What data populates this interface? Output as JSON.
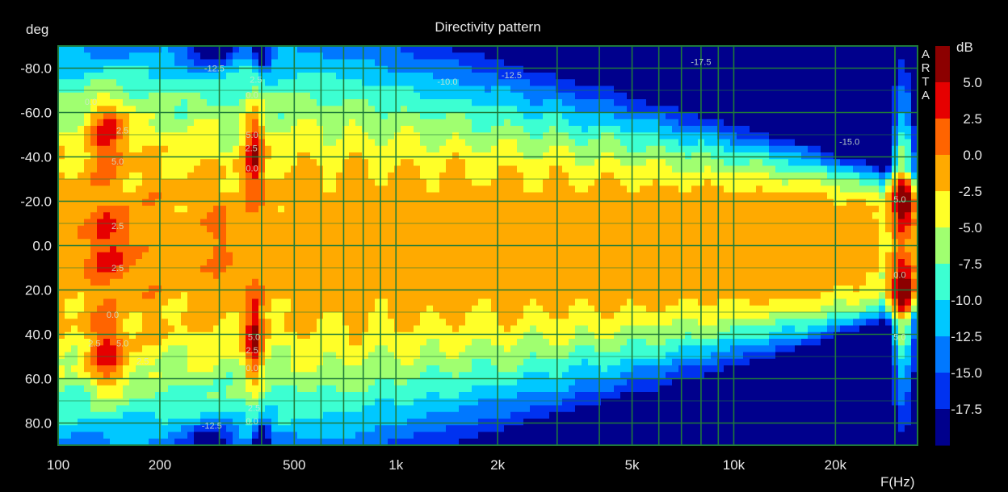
{
  "chart_data": {
    "type": "heatmap",
    "title": "Directivity pattern",
    "ylabel": "deg",
    "xlabel": "F(Hz)",
    "x_scale": "log",
    "xlim": [
      100,
      35000
    ],
    "ylim": [
      -90,
      90
    ],
    "y_inverted": true,
    "x_ticks": [
      {
        "value": 100,
        "label": "100"
      },
      {
        "value": 200,
        "label": "200"
      },
      {
        "value": 500,
        "label": "500"
      },
      {
        "value": 1000,
        "label": "1k"
      },
      {
        "value": 2000,
        "label": "2k"
      },
      {
        "value": 5000,
        "label": "5k"
      },
      {
        "value": 10000,
        "label": "10k"
      },
      {
        "value": 20000,
        "label": "20k"
      }
    ],
    "y_ticks": [
      {
        "value": -80,
        "label": "-80.0"
      },
      {
        "value": -60,
        "label": "-60.0"
      },
      {
        "value": -40,
        "label": "-40.0"
      },
      {
        "value": -20,
        "label": "-20.0"
      },
      {
        "value": 0,
        "label": "0.0"
      },
      {
        "value": 20,
        "label": "20.0"
      },
      {
        "value": 40,
        "label": "40.0"
      },
      {
        "value": 60,
        "label": "60.0"
      },
      {
        "value": 80,
        "label": "80.0"
      }
    ],
    "grid": true,
    "colorbar": {
      "unit": "dB",
      "placement": "right",
      "levels": [
        {
          "label": "",
          "color": "#8c0000"
        },
        {
          "label": "5.0",
          "color": "#e60000"
        },
        {
          "label": "2.5",
          "color": "#ff6400"
        },
        {
          "label": "0.0",
          "color": "#ffaa00"
        },
        {
          "label": "-2.5",
          "color": "#ffff28"
        },
        {
          "label": "-5.0",
          "color": "#a0ff70"
        },
        {
          "label": "-7.5",
          "color": "#3cffd2"
        },
        {
          "label": "-10.0",
          "color": "#00c8ff"
        },
        {
          "label": "-12.5",
          "color": "#0078ff"
        },
        {
          "label": "-15.0",
          "color": "#0032f0"
        },
        {
          "label": "-17.5",
          "color": "#00008c"
        }
      ]
    },
    "contour_labels": [
      {
        "text": "0.0",
        "f": 125,
        "deg": -65
      },
      {
        "text": "5.0",
        "f": 150,
        "deg": -38
      },
      {
        "text": "2.5",
        "f": 155,
        "deg": -52
      },
      {
        "text": "2.5",
        "f": 150,
        "deg": -9
      },
      {
        "text": "2.5",
        "f": 150,
        "deg": 10
      },
      {
        "text": "0.0",
        "f": 145,
        "deg": 31
      },
      {
        "text": "5.0",
        "f": 155,
        "deg": 44
      },
      {
        "text": "2.5",
        "f": 128,
        "deg": 44
      },
      {
        "text": "2.5",
        "f": 178,
        "deg": 52
      },
      {
        "text": "-12.5",
        "f": 290,
        "deg": -80
      },
      {
        "text": "2.5",
        "f": 385,
        "deg": -75
      },
      {
        "text": "0.0",
        "f": 375,
        "deg": -68
      },
      {
        "text": "5.0",
        "f": 375,
        "deg": -50
      },
      {
        "text": "2.5",
        "f": 373,
        "deg": -44
      },
      {
        "text": "0.0",
        "f": 375,
        "deg": -35
      },
      {
        "text": "5.0",
        "f": 380,
        "deg": 41
      },
      {
        "text": "2.5",
        "f": 375,
        "deg": 47
      },
      {
        "text": "0.0",
        "f": 375,
        "deg": 55
      },
      {
        "text": "2.5",
        "f": 380,
        "deg": 73
      },
      {
        "text": "0.0",
        "f": 375,
        "deg": 79
      },
      {
        "text": "-12.5",
        "f": 285,
        "deg": 81
      },
      {
        "text": "-10.0",
        "f": 1420,
        "deg": -74
      },
      {
        "text": "-12.5",
        "f": 2200,
        "deg": -77
      },
      {
        "text": "-17.5",
        "f": 8000,
        "deg": -83
      },
      {
        "text": "-15.0",
        "f": 22000,
        "deg": -47
      },
      {
        "text": "5.0",
        "f": 31000,
        "deg": -21
      },
      {
        "text": "0.0",
        "f": 31000,
        "deg": 13
      },
      {
        "text": "5.0",
        "f": 31000,
        "deg": 41
      }
    ],
    "annotations": [
      "A",
      "R",
      "T",
      "A"
    ]
  }
}
